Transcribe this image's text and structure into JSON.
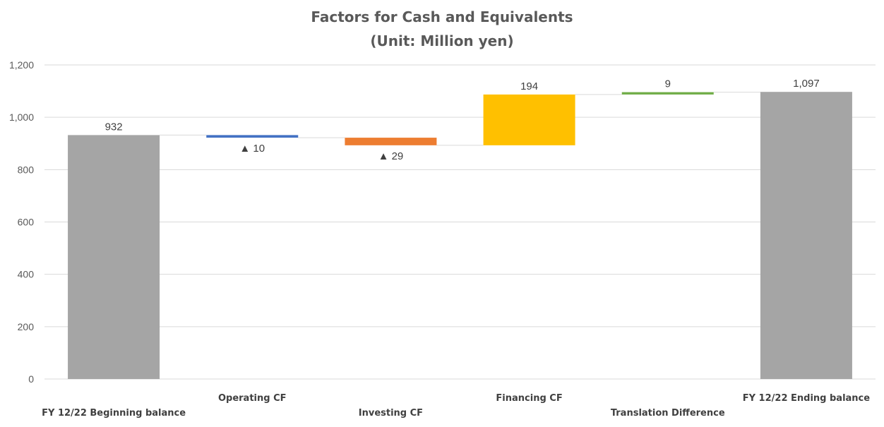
{
  "chart_data": {
    "type": "bar",
    "subtype": "waterfall",
    "title": "Factors for Cash and Equivalents",
    "subtitle": "(Unit: Million yen)",
    "ylim": [
      0,
      1200
    ],
    "yticks": [
      0,
      200,
      400,
      600,
      800,
      1000,
      1200
    ],
    "ytick_labels": [
      "0",
      "200",
      "400",
      "600",
      "800",
      "1,000",
      "1,200"
    ],
    "grid": true,
    "categories": [
      "FY 12/22 Beginning balance",
      "Operating CF",
      "Investing CF",
      "Financing CF",
      "Translation Difference",
      "FY 12/22 Ending balance"
    ],
    "bars": [
      {
        "kind": "total",
        "value": 932,
        "label": "932",
        "color": "#a5a5a5"
      },
      {
        "kind": "delta",
        "value": -10,
        "label": "▲ 10",
        "color": "#4472c4"
      },
      {
        "kind": "delta",
        "value": -29,
        "label": "▲ 29",
        "color": "#ed7d31"
      },
      {
        "kind": "delta",
        "value": 194,
        "label": "194",
        "color": "#ffc000"
      },
      {
        "kind": "delta",
        "value": 9,
        "label": "9",
        "color": "#70ad47"
      },
      {
        "kind": "total",
        "value": 1097,
        "label": "1,097",
        "color": "#a5a5a5"
      }
    ]
  }
}
